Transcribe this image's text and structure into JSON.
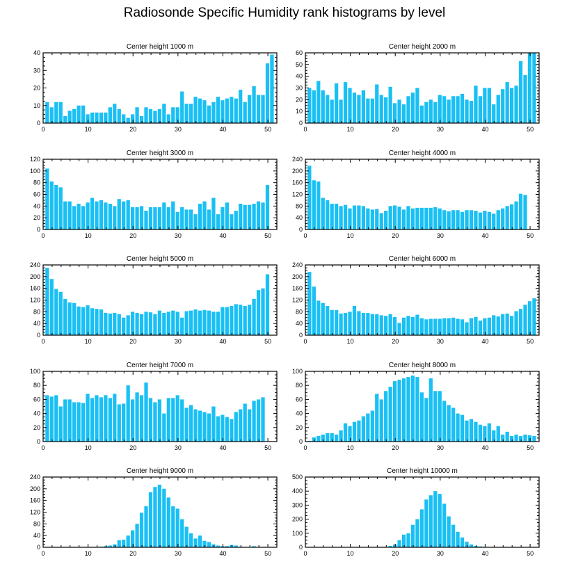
{
  "title": "Radiosonde Specific Humidity rank histograms by level",
  "colors": {
    "bar": "#1ac0f4",
    "bar_edge": "#ffffff",
    "axis": "#000000"
  },
  "chart_data": [
    {
      "type": "bar",
      "title": "Center height 1000 m",
      "xlim": [
        0,
        52
      ],
      "ylim": [
        0,
        40
      ],
      "xticks": [
        0,
        10,
        20,
        30,
        40,
        50
      ],
      "yticks": [
        0,
        10,
        20,
        30,
        40
      ],
      "values": [
        12,
        9,
        12,
        12,
        4,
        7,
        8,
        10,
        10,
        5,
        6,
        6,
        6,
        6,
        9,
        11,
        8,
        5,
        3,
        5,
        9,
        4,
        9,
        8,
        7,
        8,
        11,
        5,
        9,
        9,
        18,
        11,
        11,
        15,
        14,
        13,
        10,
        12,
        15,
        13,
        14,
        15,
        14,
        19,
        12,
        16,
        21,
        16,
        16,
        34,
        39
      ]
    },
    {
      "type": "bar",
      "title": "Center height 2000 m",
      "xlim": [
        0,
        52
      ],
      "ylim": [
        0,
        60
      ],
      "xticks": [
        0,
        10,
        20,
        30,
        40,
        50
      ],
      "yticks": [
        0,
        10,
        20,
        30,
        40,
        50,
        60
      ],
      "values": [
        30,
        28,
        36,
        28,
        24,
        20,
        34,
        20,
        35,
        30,
        26,
        24,
        28,
        21,
        21,
        33,
        24,
        22,
        31,
        17,
        20,
        16,
        23,
        26,
        30,
        15,
        18,
        20,
        18,
        24,
        23,
        20,
        23,
        23,
        25,
        20,
        19,
        32,
        23,
        30,
        30,
        16,
        24,
        29,
        35,
        30,
        32,
        53,
        41,
        60,
        60
      ]
    },
    {
      "type": "bar",
      "title": "Center height 3000 m",
      "xlim": [
        0,
        52
      ],
      "ylim": [
        0,
        120
      ],
      "xticks": [
        0,
        10,
        20,
        30,
        40,
        50
      ],
      "yticks": [
        0,
        20,
        40,
        60,
        80,
        100,
        120
      ],
      "values": [
        104,
        82,
        76,
        72,
        48,
        48,
        40,
        44,
        40,
        46,
        54,
        48,
        50,
        46,
        44,
        40,
        52,
        48,
        50,
        38,
        38,
        40,
        32,
        38,
        38,
        38,
        46,
        38,
        48,
        30,
        38,
        34,
        34,
        26,
        44,
        48,
        34,
        54,
        26,
        38,
        46,
        26,
        32,
        44,
        42,
        42,
        44,
        48,
        46,
        76
      ]
    },
    {
      "type": "bar",
      "title": "Center height 4000 m",
      "xlim": [
        0,
        52
      ],
      "ylim": [
        0,
        240
      ],
      "xticks": [
        0,
        10,
        20,
        30,
        40,
        50
      ],
      "yticks": [
        0,
        40,
        80,
        120,
        160,
        200,
        240
      ],
      "values": [
        218,
        168,
        164,
        108,
        100,
        88,
        88,
        80,
        84,
        72,
        82,
        82,
        80,
        72,
        68,
        70,
        56,
        64,
        80,
        82,
        78,
        68,
        80,
        72,
        74,
        74,
        74,
        74,
        76,
        72,
        66,
        62,
        66,
        66,
        60,
        66,
        66,
        64,
        58,
        64,
        60,
        54,
        66,
        72,
        80,
        86,
        96,
        122,
        118
      ]
    },
    {
      "type": "bar",
      "title": "Center height 5000 m",
      "xlim": [
        0,
        52
      ],
      "ylim": [
        0,
        240
      ],
      "xticks": [
        0,
        10,
        20,
        30,
        40,
        50
      ],
      "yticks": [
        0,
        40,
        80,
        120,
        160,
        200,
        240
      ],
      "values": [
        230,
        192,
        158,
        148,
        124,
        112,
        110,
        98,
        96,
        102,
        92,
        90,
        88,
        76,
        74,
        76,
        72,
        60,
        68,
        80,
        76,
        72,
        80,
        78,
        72,
        84,
        76,
        80,
        84,
        80,
        60,
        82,
        84,
        88,
        84,
        86,
        84,
        80,
        80,
        96,
        96,
        100,
        106,
        104,
        100,
        104,
        124,
        154,
        160,
        208
      ]
    },
    {
      "type": "bar",
      "title": "Center height 6000 m",
      "xlim": [
        0,
        52
      ],
      "ylim": [
        0,
        240
      ],
      "xticks": [
        0,
        10,
        20,
        30,
        40,
        50
      ],
      "yticks": [
        0,
        40,
        80,
        120,
        160,
        200,
        240
      ],
      "values": [
        216,
        166,
        118,
        110,
        100,
        86,
        86,
        74,
        76,
        80,
        100,
        82,
        76,
        76,
        72,
        72,
        68,
        66,
        72,
        62,
        42,
        60,
        66,
        62,
        70,
        58,
        54,
        56,
        56,
        56,
        58,
        58,
        60,
        56,
        54,
        44,
        58,
        62,
        50,
        58,
        60,
        68,
        64,
        72,
        74,
        66,
        82,
        90,
        104,
        116,
        126
      ]
    },
    {
      "type": "bar",
      "title": "Center height 7000 m",
      "xlim": [
        0,
        52
      ],
      "ylim": [
        0,
        100
      ],
      "xticks": [
        0,
        10,
        20,
        30,
        40,
        50
      ],
      "yticks": [
        0,
        20,
        40,
        60,
        80,
        100
      ],
      "values": [
        66,
        64,
        66,
        50,
        60,
        60,
        56,
        56,
        55,
        68,
        62,
        66,
        63,
        66,
        62,
        68,
        53,
        54,
        80,
        60,
        70,
        66,
        84,
        62,
        56,
        60,
        40,
        62,
        62,
        66,
        60,
        48,
        52,
        46,
        44,
        42,
        40,
        50,
        36,
        38,
        35,
        32,
        42,
        46,
        54,
        46,
        58,
        60,
        63
      ]
    },
    {
      "type": "bar",
      "title": "Center height 8000 m",
      "xlim": [
        0,
        52
      ],
      "ylim": [
        0,
        100
      ],
      "xticks": [
        0,
        10,
        20,
        30,
        40,
        50
      ],
      "yticks": [
        0,
        20,
        40,
        60,
        80,
        100
      ],
      "values": [
        1,
        6,
        8,
        10,
        12,
        12,
        10,
        16,
        26,
        22,
        28,
        30,
        36,
        40,
        44,
        68,
        60,
        72,
        78,
        86,
        88,
        90,
        92,
        94,
        92,
        70,
        62,
        90,
        72,
        72,
        58,
        52,
        48,
        40,
        38,
        30,
        32,
        28,
        24,
        22,
        26,
        16,
        22,
        10,
        14,
        8,
        10,
        8,
        10,
        9,
        8
      ]
    },
    {
      "type": "bar",
      "title": "Center height 9000 m",
      "xlim": [
        0,
        52
      ],
      "ylim": [
        0,
        240
      ],
      "xticks": [
        0,
        10,
        20,
        30,
        40,
        50
      ],
      "yticks": [
        0,
        40,
        80,
        120,
        160,
        200,
        240
      ],
      "values": [
        0,
        0,
        0,
        0,
        0,
        0,
        0,
        0,
        0,
        0,
        0,
        0,
        2,
        4,
        6,
        10,
        24,
        26,
        40,
        58,
        80,
        118,
        140,
        188,
        206,
        214,
        200,
        170,
        140,
        132,
        96,
        70,
        48,
        30,
        40,
        22,
        18,
        10,
        6,
        4,
        4,
        8,
        6,
        2,
        0,
        0,
        4,
        0,
        0,
        0,
        0
      ]
    },
    {
      "type": "bar",
      "title": "Center height 10000 m",
      "xlim": [
        0,
        52
      ],
      "ylim": [
        0,
        500
      ],
      "xticks": [
        0,
        10,
        20,
        30,
        40,
        50
      ],
      "yticks": [
        0,
        100,
        200,
        300,
        400,
        500
      ],
      "values": [
        0,
        0,
        0,
        0,
        0,
        0,
        0,
        0,
        0,
        0,
        0,
        0,
        0,
        0,
        0,
        0,
        0,
        0,
        10,
        20,
        50,
        90,
        100,
        160,
        200,
        270,
        340,
        370,
        400,
        380,
        310,
        220,
        160,
        110,
        70,
        40,
        20,
        10,
        6,
        4,
        2,
        0,
        0,
        0,
        0,
        0,
        0,
        0,
        0,
        0,
        0
      ]
    }
  ]
}
